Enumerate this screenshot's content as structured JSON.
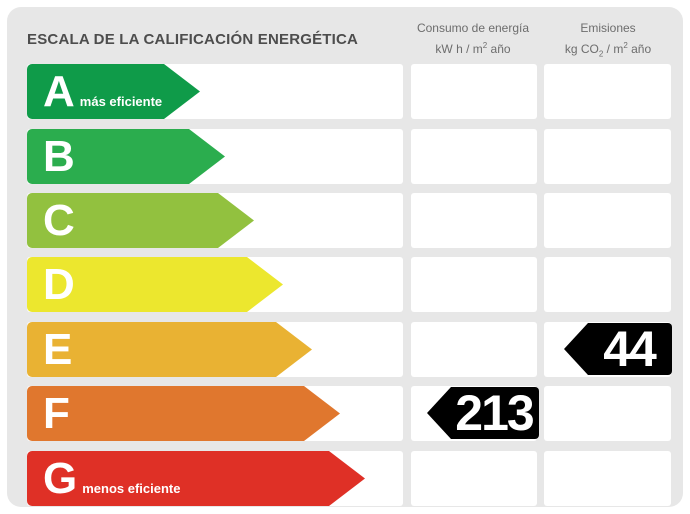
{
  "title": "ESCALA DE LA CALIFICACIÓN ENERGÉTICA",
  "columns": {
    "consumo": {
      "title": "Consumo de energía",
      "unit_pre": "kW h / m",
      "unit_sup": "2",
      "unit_post": " año"
    },
    "emisiones": {
      "title": "Emisiones",
      "unit_pre": "kg CO",
      "unit_sub": "2",
      "unit_mid": " / m",
      "unit_sup": "2",
      "unit_post": " año"
    }
  },
  "rows": [
    {
      "letter": "A",
      "label": "más eficiente",
      "color": "#0f9b49"
    },
    {
      "letter": "B",
      "color": "#2bad4e"
    },
    {
      "letter": "C",
      "color": "#92c13f"
    },
    {
      "letter": "D",
      "color": "#ece72e"
    },
    {
      "letter": "E",
      "color": "#e9b233",
      "emisiones": "44"
    },
    {
      "letter": "F",
      "color": "#e0772e",
      "consumo": "213"
    },
    {
      "letter": "G",
      "label": "menos eficiente",
      "color": "#df3026"
    }
  ],
  "badge_color": "#000000",
  "panel_bg": "#e7e7e7",
  "chart_data": {
    "type": "table",
    "title": "ESCALA DE LA CALIFICACIÓN ENERGÉTICA",
    "categories": [
      "A",
      "B",
      "C",
      "D",
      "E",
      "F",
      "G"
    ],
    "category_colors": [
      "#0f9b49",
      "#2bad4e",
      "#92c13f",
      "#ece72e",
      "#e9b233",
      "#e0772e",
      "#df3026"
    ],
    "columns": [
      "Consumo de energía (kW h / m² año)",
      "Emisiones (kg CO₂ / m² año)"
    ],
    "annotations": [
      "A = más eficiente",
      "G = menos eficiente"
    ],
    "values": {
      "consumo": {
        "rating": "F",
        "value": 213
      },
      "emisiones": {
        "rating": "E",
        "value": 44
      }
    }
  }
}
